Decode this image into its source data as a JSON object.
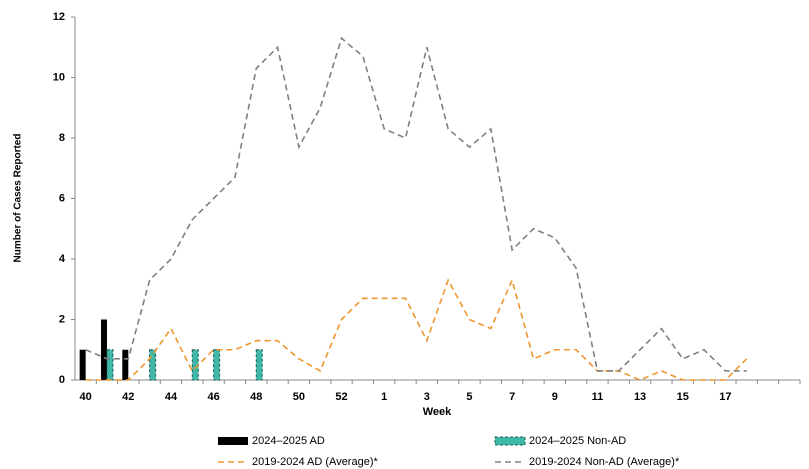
{
  "chart_data": {
    "type": "bar-line",
    "x_label": "Week",
    "y_label": "Number of Cases Reported",
    "categories": [
      40,
      null,
      42,
      null,
      44,
      null,
      46,
      null,
      48,
      null,
      50,
      null,
      52,
      null,
      1,
      null,
      3,
      null,
      5,
      null,
      7,
      null,
      9,
      null,
      11,
      null,
      13,
      null,
      15,
      null,
      17,
      null,
      null,
      null
    ],
    "ylim": [
      0,
      12
    ],
    "yticks": [
      0,
      2,
      4,
      6,
      8,
      10,
      12
    ],
    "series": [
      {
        "name": "2024–2025 AD",
        "kind": "bar",
        "color": "#000000",
        "values": [
          1,
          2,
          1,
          null,
          null,
          null,
          null,
          null,
          null,
          null,
          null,
          null,
          null,
          null,
          null,
          null,
          null,
          null,
          null,
          null,
          null,
          null,
          null,
          null,
          null,
          null,
          null,
          null,
          null,
          null,
          null,
          null,
          null,
          null
        ]
      },
      {
        "name": "2024–2025 Non-AD",
        "kind": "bar",
        "color": "#3fb8a8",
        "values": [
          null,
          1,
          null,
          1,
          null,
          1,
          1,
          null,
          1,
          null,
          null,
          null,
          null,
          null,
          null,
          null,
          null,
          null,
          null,
          null,
          null,
          null,
          null,
          null,
          null,
          null,
          null,
          null,
          null,
          null,
          null,
          null,
          null,
          null
        ]
      },
      {
        "name": "2019-2024 AD (Average)*",
        "kind": "line",
        "color": "#f0962e",
        "values": [
          0,
          0,
          0,
          0.7,
          1.7,
          0.3,
          1.0,
          1.0,
          1.3,
          1.3,
          0.7,
          0.3,
          2.0,
          2.7,
          2.7,
          2.7,
          1.3,
          3.3,
          2.0,
          1.7,
          3.3,
          0.7,
          1.0,
          1.0,
          0.3,
          0.3,
          0,
          0.3,
          0,
          0,
          0,
          0.7,
          null,
          null
        ]
      },
      {
        "name": "2019-2024 Non-AD (Average)*",
        "kind": "line",
        "color": "#808080",
        "values": [
          1.0,
          0.7,
          0.7,
          3.3,
          4.0,
          5.3,
          6.0,
          6.7,
          10.3,
          11.0,
          7.7,
          9.0,
          11.3,
          10.7,
          8.3,
          8.0,
          11.0,
          8.3,
          7.7,
          8.3,
          4.3,
          5.0,
          4.7,
          3.7,
          0.3,
          0.3,
          1.0,
          1.7,
          0.7,
          1.0,
          0.3,
          0.3,
          null,
          null
        ]
      }
    ]
  }
}
